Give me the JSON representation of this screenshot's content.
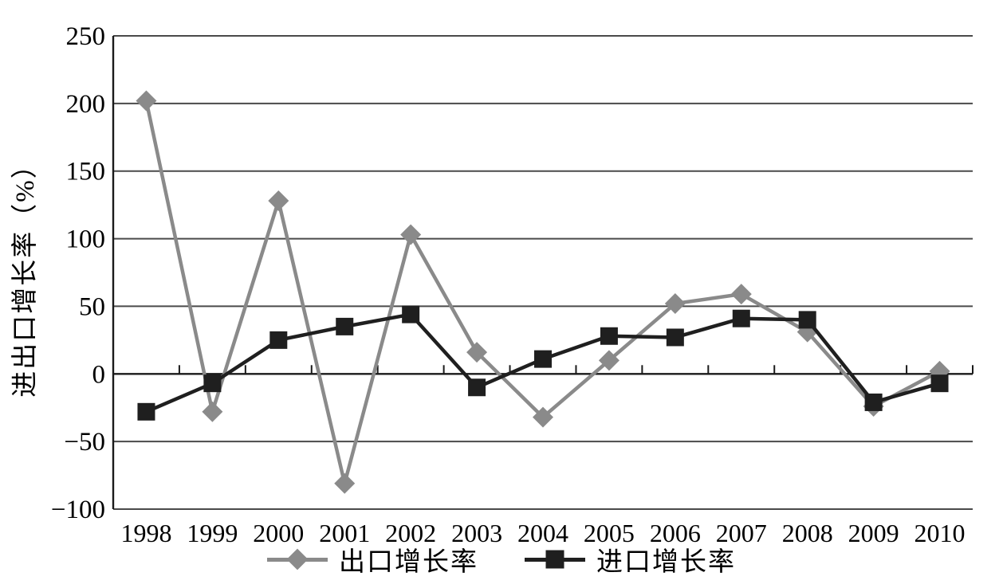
{
  "chart_data": {
    "type": "line",
    "title": "",
    "categories": [
      "1998",
      "1999",
      "2000",
      "2001",
      "2002",
      "2003",
      "2004",
      "2005",
      "2006",
      "2007",
      "2008",
      "2009",
      "2010"
    ],
    "series": [
      {
        "name": "出口增长率",
        "marker": "diamond",
        "color": "#8a8a8a",
        "values": [
          202,
          -28,
          128,
          -81,
          103,
          16,
          -32,
          10,
          52,
          59,
          31,
          -24,
          2
        ]
      },
      {
        "name": "进口增长率",
        "marker": "square",
        "color": "#1f1f1f",
        "values": [
          -28,
          -7,
          25,
          35,
          44,
          -10,
          11,
          28,
          27,
          41,
          40,
          -21,
          -7
        ]
      }
    ],
    "xlabel": "",
    "ylabel": "进出口增长率（%）",
    "ylim": [
      -100,
      250
    ],
    "ytick_step": 50,
    "yticks": [
      250,
      200,
      150,
      100,
      50,
      0,
      -50,
      -100
    ],
    "ytick_labels": [
      "250",
      "200",
      "150",
      "100",
      "50",
      "0",
      "−50",
      "−100"
    ],
    "grid": "horizontal-only",
    "legend_position": "bottom-center"
  },
  "style": {
    "gridline_color": "#4a4a4a",
    "axis_color": "#1a1a1a",
    "text_color": "#000000",
    "background": "#ffffff"
  }
}
